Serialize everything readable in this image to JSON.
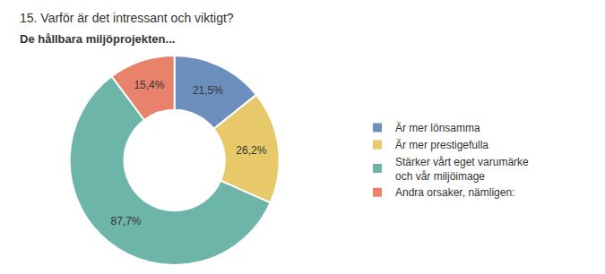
{
  "chart_data": {
    "type": "pie",
    "title": "15. Varför är det intressant och viktigt?",
    "subtitle": "De hållbara miljöprojekten...",
    "categories": [
      "Är mer lönsamma",
      "Är mer prestigefulla",
      "Stärker vårt eget varumärke\noch vår miljöimage",
      "Andra orsaker, nämligen:"
    ],
    "values": [
      21.5,
      26.2,
      87.7,
      15.4
    ],
    "value_labels": [
      "21,5%",
      "26,2%",
      "87,7%",
      "15,4%"
    ],
    "colors": [
      "#6d8fbd",
      "#e8c96a",
      "#6db5a8",
      "#e8826a"
    ],
    "data_labels": true,
    "legend": "right"
  }
}
